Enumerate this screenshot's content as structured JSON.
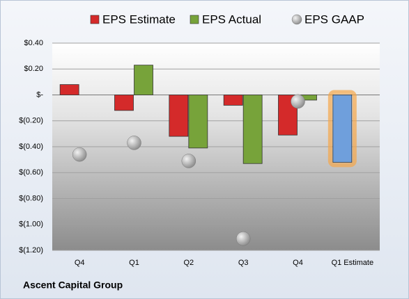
{
  "chart_data": {
    "type": "bar",
    "title": "Ascent Capital Group",
    "categories": [
      "Q4",
      "Q1",
      "Q2",
      "Q3",
      "Q4",
      "Q1 Estimate"
    ],
    "series": [
      {
        "name": "EPS Estimate",
        "color": "#d42a2a",
        "forecast_color": "#6f9fdc",
        "values": [
          0.08,
          -0.12,
          -0.32,
          -0.08,
          -0.31,
          -0.52
        ]
      },
      {
        "name": "EPS Actual",
        "color": "#77a33a",
        "values": [
          null,
          0.23,
          -0.41,
          -0.53,
          -0.04,
          null
        ]
      },
      {
        "name": "EPS GAAP",
        "color": "#a8a8a8",
        "marker": "sphere",
        "values": [
          -0.46,
          -0.37,
          -0.51,
          -1.11,
          -0.05,
          null
        ]
      }
    ],
    "ylim": [
      -1.2,
      0.4
    ],
    "yticks": [
      {
        "value": 0.4,
        "label": "$0.40"
      },
      {
        "value": 0.2,
        "label": "$0.20"
      },
      {
        "value": 0,
        "label": "$-"
      },
      {
        "value": -0.2,
        "label": "$(0.20)"
      },
      {
        "value": -0.4,
        "label": "$(0.40)"
      },
      {
        "value": -0.6,
        "label": "$(0.60)"
      },
      {
        "value": -0.8,
        "label": "$(0.80)"
      },
      {
        "value": -1.0,
        "label": "$(1.00)"
      },
      {
        "value": -1.2,
        "label": "$(1.20)"
      }
    ],
    "grid": true
  }
}
